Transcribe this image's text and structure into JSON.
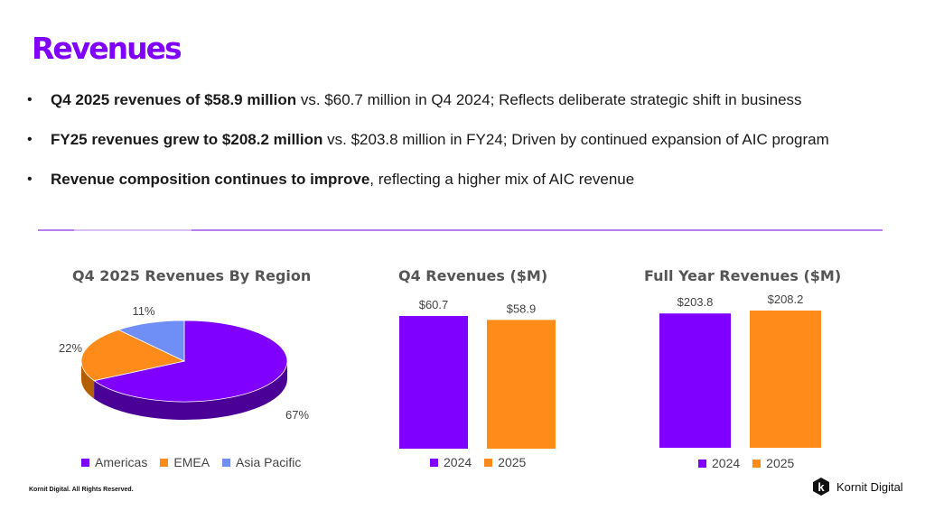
{
  "header": {
    "title": "Revenues"
  },
  "bullets": [
    {
      "bold": "Q4 2025 revenues of $58.9 million",
      "rest": " vs. $60.7 million in Q4 2024; Reflects deliberate strategic shift in business"
    },
    {
      "bold": "FY25 revenues grew to $208.2 million",
      "rest": " vs. $203.8 million in FY24; Driven by continued expansion of AIC program"
    },
    {
      "bold": "Revenue composition continues to improve",
      "rest": ", reflecting a higher mix of AIC revenue"
    }
  ],
  "colors": {
    "purple": "#8000ff",
    "orange": "#ff8c1a",
    "blue": "#6f8ff7",
    "accent": "#8000ff"
  },
  "chart_data": [
    {
      "type": "pie",
      "title": "Q4 2025 Revenues By Region",
      "categories": [
        "Americas",
        "EMEA",
        "Asia Pacific"
      ],
      "values": [
        67,
        22,
        11
      ],
      "labels": [
        "67%",
        "22%",
        "11%"
      ],
      "legend_position": "bottom"
    },
    {
      "type": "bar",
      "title": "Q4 Revenues ($M)",
      "categories": [
        "2024",
        "2025"
      ],
      "values": [
        60.7,
        58.9
      ],
      "labels": [
        "$60.7",
        "$58.9"
      ],
      "legend_position": "bottom"
    },
    {
      "type": "bar",
      "title": "Full Year Revenues ($M)",
      "categories": [
        "2024",
        "2025"
      ],
      "values": [
        203.8,
        208.2
      ],
      "labels": [
        "$203.8",
        "$208.2"
      ],
      "legend_position": "bottom"
    }
  ],
  "footer": {
    "copyright": "Kornit Digital. All Rights Reserved.",
    "brand": "Kornit Digital",
    "logo_letter": "k"
  }
}
